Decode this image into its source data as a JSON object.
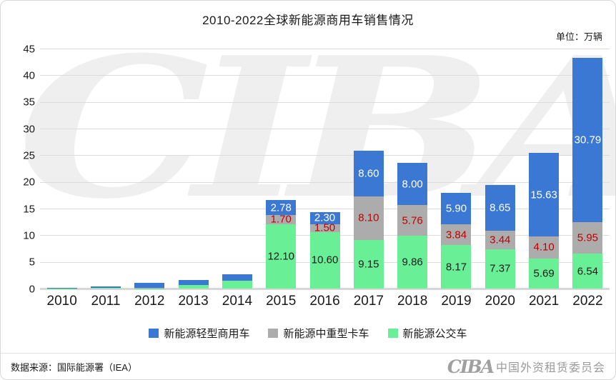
{
  "title": "2010-2022全球新能源商用车销售情况",
  "unit_label": "单位：万辆",
  "watermark_text": "CIBA",
  "footer": {
    "source": "数据来源：国际能源署（IEA）",
    "org_logo": "CIBA",
    "org_name": "中国外资租赁委员会"
  },
  "colors": {
    "light_commercial_blue": "#3B78D4",
    "medium_heavy_truck_gray": "#ACACAC",
    "bus_green": "#69F096",
    "gray_segment_label_red": "#C00000",
    "green_segment_label_dark": "#1A1A1A",
    "blue_segment_label_white": "#FFFFFF",
    "gridline": "#DCDCDC"
  },
  "chart_data": {
    "type": "bar",
    "stacked": true,
    "title": "2010-2022全球新能源商用车销售情况",
    "unit": "万辆",
    "categories": [
      "2010",
      "2011",
      "2012",
      "2013",
      "2014",
      "2015",
      "2016",
      "2017",
      "2018",
      "2019",
      "2020",
      "2021",
      "2022"
    ],
    "series": [
      {
        "name": "新能源轻型商用车",
        "color": "#3B78D4",
        "label_color": "#FFFFFF",
        "values": [
          0.12,
          0.32,
          1.0,
          0.85,
          1.1,
          2.78,
          2.3,
          8.6,
          8.0,
          5.9,
          8.65,
          15.63,
          30.79
        ]
      },
      {
        "name": "新能源中重型卡车",
        "color": "#ACACAC",
        "label_color": "#C00000",
        "values": [
          0.02,
          0.03,
          0.08,
          0.05,
          0.06,
          1.7,
          1.5,
          8.1,
          5.76,
          3.84,
          3.44,
          4.1,
          5.95
        ]
      },
      {
        "name": "新能源公交车",
        "color": "#69F096",
        "label_color": "#1A1A1A",
        "values": [
          0.04,
          0.1,
          0.05,
          0.67,
          1.48,
          12.1,
          10.6,
          9.15,
          9.86,
          8.17,
          7.37,
          5.69,
          6.54
        ]
      }
    ],
    "labels_shown_from_index": 5,
    "label_decimals": 2,
    "ylim": [
      0,
      45
    ],
    "yticks": [
      0,
      5,
      10,
      15,
      20,
      25,
      30,
      35,
      40,
      45
    ],
    "grid": true,
    "legend_position": "bottom"
  }
}
